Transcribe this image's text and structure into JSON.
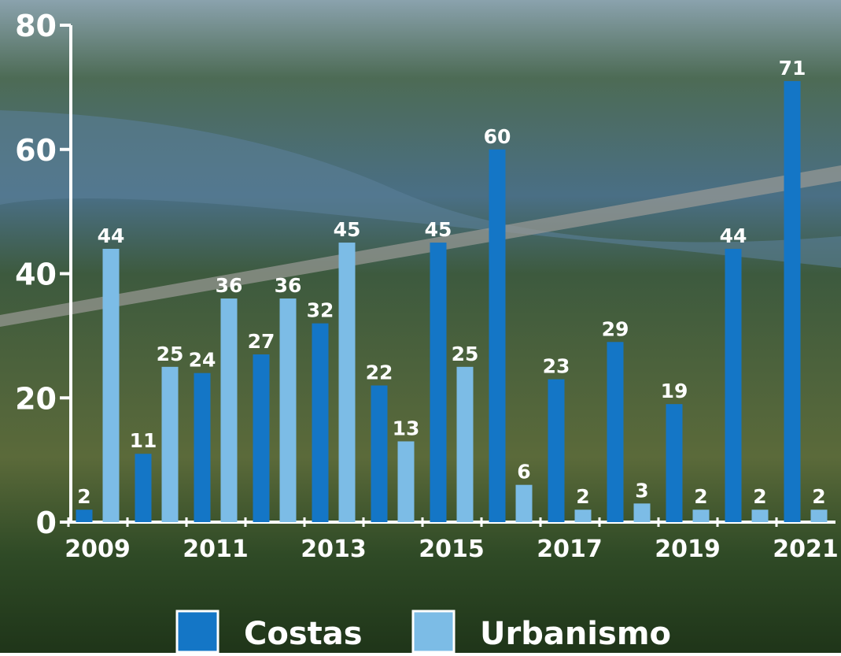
{
  "chart_data": {
    "type": "bar",
    "categories": [
      "2009",
      null,
      "2011",
      null,
      "2013",
      null,
      "2015",
      null,
      "2017",
      null,
      "2019",
      null,
      "2021"
    ],
    "series": [
      {
        "name": "Costas",
        "color": "#1476c6",
        "values": [
          2,
          11,
          24,
          27,
          32,
          22,
          45,
          60,
          23,
          29,
          19,
          44,
          71
        ]
      },
      {
        "name": "Urbanismo",
        "color": "#7cbce6",
        "values": [
          44,
          25,
          36,
          36,
          45,
          13,
          25,
          6,
          2,
          3,
          2,
          2,
          2
        ]
      }
    ],
    "ylim": [
      0,
      80
    ],
    "yticks": [
      0,
      20,
      40,
      60,
      80
    ]
  }
}
